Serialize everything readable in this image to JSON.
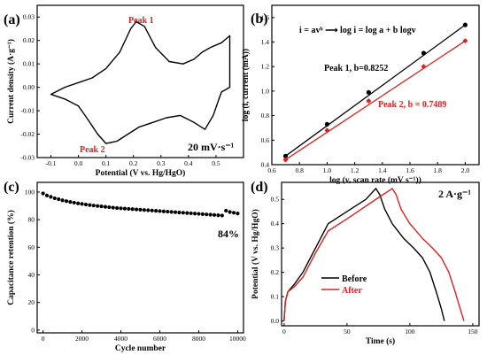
{
  "colors": {
    "black": "#000000",
    "red": "#e02020"
  },
  "chart_data": [
    {
      "panel": "(a)",
      "type": "line",
      "xlabel": "Potential (V vs. Hg/HgO)",
      "ylabel": "Current density (A·g⁻¹)",
      "xlim": [
        -0.15,
        0.6
      ],
      "ylim": [
        -0.03,
        0.035
      ],
      "xticks": [
        "-0.1",
        "0.0",
        "0.1",
        "0.2",
        "0.3",
        "0.4",
        "0.5"
      ],
      "yticks": [
        "-0.03",
        "-0.02",
        "-0.01",
        "0.00",
        "0.01",
        "0.02",
        "0.03"
      ],
      "annotations": [
        "Peak 1",
        "Peak 2",
        "20 mV·s⁻¹"
      ],
      "series": [
        {
          "x": [
            -0.1,
            -0.05,
            0.0,
            0.05,
            0.1,
            0.15,
            0.19,
            0.21,
            0.24,
            0.28,
            0.33,
            0.38,
            0.42,
            0.45,
            0.48,
            0.52,
            0.55,
            0.55,
            0.52,
            0.49,
            0.46,
            0.42,
            0.37,
            0.32,
            0.27,
            0.22,
            0.18,
            0.14,
            0.1,
            0.07,
            0.03,
            0.0,
            -0.05,
            -0.1
          ],
          "y": [
            -0.003,
            0.0,
            0.002,
            0.004,
            0.008,
            0.015,
            0.025,
            0.028,
            0.026,
            0.017,
            0.011,
            0.01,
            0.012,
            0.015,
            0.017,
            0.019,
            0.022,
            0.0,
            -0.002,
            -0.012,
            -0.018,
            -0.015,
            -0.012,
            -0.013,
            -0.015,
            -0.017,
            -0.02,
            -0.023,
            -0.024,
            -0.02,
            -0.013,
            -0.008,
            -0.005,
            -0.003
          ]
        }
      ]
    },
    {
      "panel": "(b)",
      "type": "scatter",
      "xlabel": "log (v, scan rate (mV s⁻¹))",
      "ylabel": "log (i, current (mA))",
      "xlim": [
        0.6,
        2.1
      ],
      "ylim": [
        0.4,
        1.7
      ],
      "xticks": [
        "0.6",
        "0.8",
        "1.0",
        "1.2",
        "1.4",
        "1.6",
        "1.8",
        "2.0"
      ],
      "yticks": [
        "0.4",
        "0.6",
        "0.8",
        "1.0",
        "1.2",
        "1.4",
        "1.6"
      ],
      "equation": "i = avᵇ ⟶ log i = log a + b logv",
      "series": [
        {
          "name": "Peak 1, b=0.8252",
          "x": [
            0.699,
            1.0,
            1.301,
            1.699,
            2.0
          ],
          "y": [
            0.47,
            0.73,
            0.99,
            1.31,
            1.54
          ]
        },
        {
          "name": "Peak 2, b = 0.7489",
          "x": [
            0.699,
            1.0,
            1.301,
            1.699,
            2.0
          ],
          "y": [
            0.44,
            0.68,
            0.92,
            1.2,
            1.41
          ]
        }
      ]
    },
    {
      "panel": "(c)",
      "type": "scatter",
      "xlabel": "Cycle  number",
      "ylabel": "Capacitance retention (%)",
      "xlim": [
        -300,
        10300
      ],
      "ylim": [
        -2,
        107
      ],
      "xticks": [
        "0",
        "2000",
        "4000",
        "6000",
        "8000",
        "10000"
      ],
      "yticks": [
        "0",
        "20",
        "40",
        "60",
        "80",
        "100"
      ],
      "annotation": "84%",
      "series": [
        {
          "x": [
            0,
            200,
            400,
            600,
            800,
            1000,
            1200,
            1400,
            1600,
            1800,
            2000,
            2200,
            2400,
            2600,
            2800,
            3000,
            3200,
            3400,
            3600,
            3800,
            4000,
            4200,
            4400,
            4600,
            4800,
            5000,
            5200,
            5400,
            5600,
            5800,
            6000,
            6200,
            6400,
            6600,
            6800,
            7000,
            7200,
            7400,
            7600,
            7800,
            8000,
            8200,
            8400,
            8600,
            8800,
            9000,
            9200,
            9400,
            9600,
            9800,
            10000
          ],
          "y": [
            99,
            97.5,
            96.5,
            95.5,
            94.8,
            94,
            93.4,
            92.8,
            92.3,
            91.8,
            91.4,
            91,
            90.6,
            90.2,
            89.9,
            89.6,
            89.3,
            89,
            88.7,
            88.4,
            88.2,
            88,
            87.8,
            87.6,
            87.4,
            87.2,
            87,
            86.8,
            86.6,
            86.4,
            86.2,
            86,
            85.8,
            85.6,
            85.4,
            85.2,
            85,
            84.8,
            84.6,
            84.4,
            84.2,
            84,
            83.8,
            83.6,
            83.4,
            83.2,
            83,
            86.5,
            85.5,
            85,
            84.5
          ]
        }
      ]
    },
    {
      "panel": "(d)",
      "type": "line",
      "xlabel": "Time (s)",
      "ylabel": "Potential (V vs. Hg/HgO)",
      "xlim": [
        -2,
        155
      ],
      "ylim": [
        -0.02,
        0.57
      ],
      "xticks": [
        "0",
        "50",
        "100",
        "150"
      ],
      "yticks": [
        "0.0",
        "0.1",
        "0.2",
        "0.3",
        "0.4",
        "0.5"
      ],
      "annotation": "2 A·g⁻¹",
      "series": [
        {
          "name": "Before",
          "x": [
            0,
            1,
            3,
            8,
            15,
            25,
            35,
            50,
            65,
            73,
            76,
            80,
            86,
            95,
            103,
            110,
            116,
            121,
            125,
            127.5
          ],
          "y": [
            0.0,
            0.08,
            0.12,
            0.15,
            0.2,
            0.3,
            0.4,
            0.45,
            0.5,
            0.545,
            0.52,
            0.46,
            0.4,
            0.34,
            0.3,
            0.26,
            0.2,
            0.12,
            0.05,
            0.0
          ]
        },
        {
          "name": "After",
          "x": [
            0,
            1,
            3,
            8,
            15,
            25,
            35,
            50,
            70,
            86,
            89,
            93,
            100,
            110,
            118,
            125,
            131,
            136,
            140,
            143
          ],
          "y": [
            0.0,
            0.08,
            0.12,
            0.14,
            0.18,
            0.28,
            0.37,
            0.42,
            0.49,
            0.545,
            0.52,
            0.46,
            0.4,
            0.34,
            0.3,
            0.26,
            0.2,
            0.12,
            0.05,
            0.0
          ]
        }
      ]
    }
  ]
}
